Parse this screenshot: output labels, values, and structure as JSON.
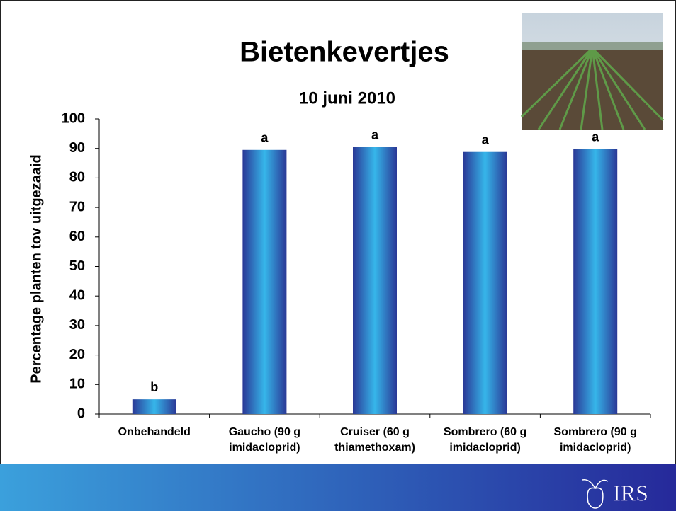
{
  "chart_data": {
    "type": "bar",
    "title": "Bietenkevertjes",
    "subtitle": "10 juni 2010",
    "y_label": "Percentage planten tov uitgezaaid",
    "categories": [
      "Onbehandeld",
      "Gaucho (90 g\nimidacloprid)",
      "Cruiser (60 g\nthiamethoxam)",
      "Sombrero (60 g\nimidacloprid)",
      "Sombrero (90 g\nimidacloprid)"
    ],
    "values": [
      5,
      89.5,
      90.5,
      88.8,
      89.7
    ],
    "letters": [
      "b",
      "a",
      "a",
      "a",
      "a"
    ],
    "color": "#2b3a9c",
    "ylim": [
      0,
      100
    ],
    "yticks": [
      0,
      10,
      20,
      30,
      40,
      50,
      60,
      70,
      80,
      90,
      100
    ],
    "grid": false
  },
  "logo": "IRS"
}
